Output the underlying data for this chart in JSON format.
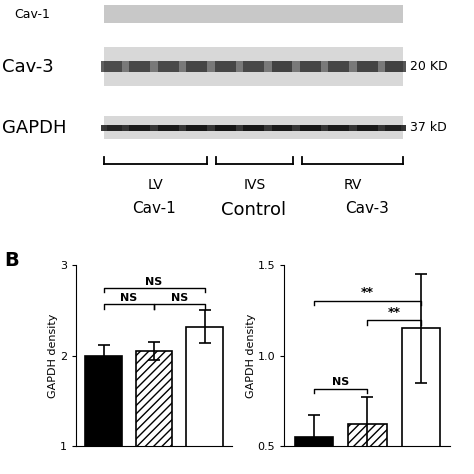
{
  "panel_b_label": "B",
  "cav1_title": "Cav-1",
  "cav3_title": "Cav-3",
  "ylabel_cav1": "GAPDH density",
  "ylabel_cav3": "GAPDH density",
  "cav1_bars": [
    2.0,
    2.05,
    2.32
  ],
  "cav1_errors": [
    0.12,
    0.1,
    0.18
  ],
  "cav3_bars": [
    0.55,
    0.62,
    1.15
  ],
  "cav3_errors": [
    0.12,
    0.15,
    0.3
  ],
  "cav1_ylim": [
    1.0,
    3.0
  ],
  "cav1_yticks": [
    1,
    2,
    3
  ],
  "cav3_ylim": [
    0.5,
    1.5
  ],
  "cav3_yticks": [
    0.5,
    1.0,
    1.5
  ],
  "hatch_pattern": "////",
  "ns_label": "NS",
  "sig_label": "**",
  "bg_color": "#ffffff",
  "blot_right1": "20 KD",
  "blot_right2": "37 kD",
  "blot_groups": [
    "LV",
    "IVS",
    "RV"
  ],
  "control_label": "Control",
  "cav1_partial_label": "Cav-1",
  "cav3_label": "Cav-3",
  "gapdh_label": "GAPDH"
}
